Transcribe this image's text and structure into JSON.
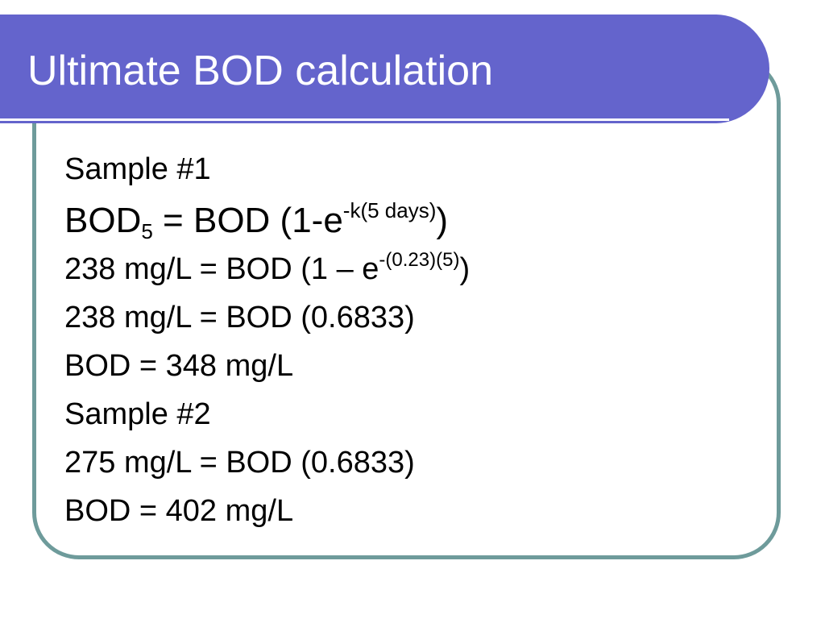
{
  "slide": {
    "title": "Ultimate BOD calculation",
    "sample1_heading": "Sample #1",
    "eq1": {
      "lhs_base": "BOD",
      "lhs_subscript": "5",
      "rhs_main": " = BOD (1-e",
      "rhs_superscript": "-k(5 days)",
      "rhs_close": ")"
    },
    "eq2": {
      "main": "238 mg/L = BOD (1 – e",
      "superscript": "-(0.23)(5)",
      "close": ")"
    },
    "eq3": "238 mg/L = BOD (0.6833)",
    "result1": "BOD = 348 mg/L",
    "sample2_heading": "Sample #2",
    "eq4": "275 mg/L = BOD (0.6833)",
    "result2": "BOD = 402 mg/L"
  },
  "colors": {
    "title_bar": "#6464cc",
    "frame_border": "#6e9b9b",
    "title_text": "#ffffff",
    "body_text": "#000000"
  }
}
